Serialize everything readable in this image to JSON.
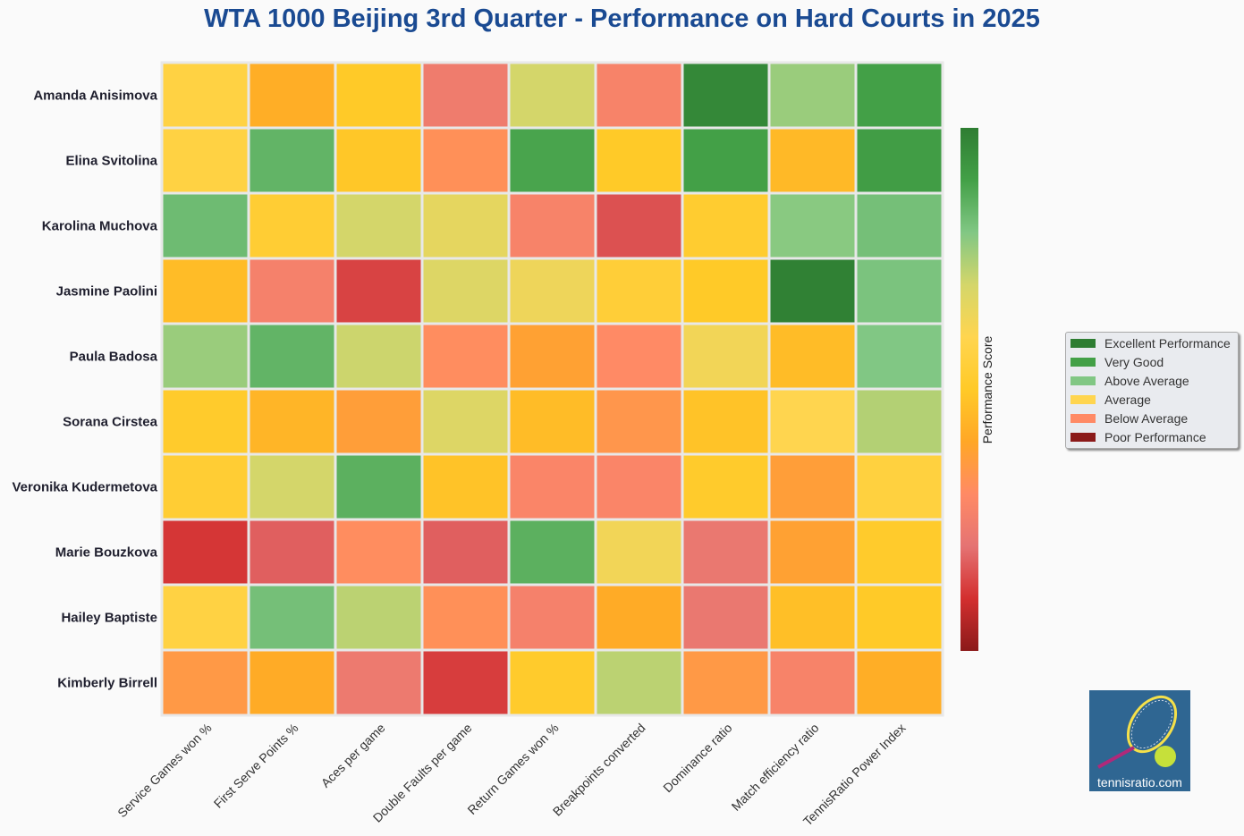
{
  "title": "WTA 1000 Beijing 3rd Quarter - Performance on Hard Courts in 2025",
  "colorbar_label": "Performance Score",
  "logo_text": "tennisratio.com",
  "legend": [
    {
      "label": "Excellent Performance",
      "color": "#2e7d32"
    },
    {
      "label": "Very Good",
      "color": "#43a047"
    },
    {
      "label": "Above Average",
      "color": "#81c784"
    },
    {
      "label": "Average",
      "color": "#ffd54f"
    },
    {
      "label": "Below Average",
      "color": "#ff8a65"
    },
    {
      "label": "Poor Performance",
      "color": "#8b1a1a"
    }
  ],
  "chart_data": {
    "type": "heatmap",
    "title": "WTA 1000 Beijing 3rd Quarter - Performance on Hard Courts in 2025",
    "colorbar_label": "Performance Score",
    "colorscale": [
      "#8b1a1a",
      "#d32f2f",
      "#e57373",
      "#ff8a65",
      "#ffa726",
      "#ffca28",
      "#ffd54f",
      "#d4d66a",
      "#81c784",
      "#43a047",
      "#2e7d32"
    ],
    "zlim": [
      0,
      100
    ],
    "columns": [
      "Service Games won %",
      "First Serve Points %",
      "Aces per game",
      "Double Faults per game",
      "Return Games won %",
      "Breakpoints converted",
      "Dominance ratio",
      "Match efficiency ratio",
      "TennisRatio Power Index"
    ],
    "rows": [
      "Amanda Anisimova",
      "Elina Svitolina",
      "Karolina Muchova",
      "Jasmine Paolini",
      "Paula Badosa",
      "Sorana Cirstea",
      "Veronika Kudermetova",
      "Marie Bouzkova",
      "Hailey Baptiste",
      "Kimberly Birrell"
    ],
    "values": [
      [
        57,
        42,
        50,
        24,
        70,
        27,
        97,
        77,
        90
      ],
      [
        57,
        85,
        49,
        32,
        89,
        50,
        90,
        45,
        91
      ],
      [
        83,
        53,
        70,
        66,
        27,
        15,
        52,
        79,
        82
      ],
      [
        46,
        26,
        13,
        68,
        64,
        54,
        50,
        99,
        81
      ],
      [
        77,
        85,
        71,
        31,
        38,
        30,
        63,
        46,
        80
      ],
      [
        51,
        44,
        37,
        68,
        46,
        34,
        48,
        60,
        74
      ],
      [
        53,
        70,
        86,
        48,
        28,
        28,
        51,
        37,
        56
      ],
      [
        11,
        17,
        31,
        17,
        86,
        63,
        22,
        38,
        51
      ],
      [
        57,
        82,
        73,
        32,
        26,
        41,
        22,
        47,
        50
      ],
      [
        35,
        41,
        23,
        12,
        51,
        73,
        35,
        27,
        42
      ]
    ]
  }
}
